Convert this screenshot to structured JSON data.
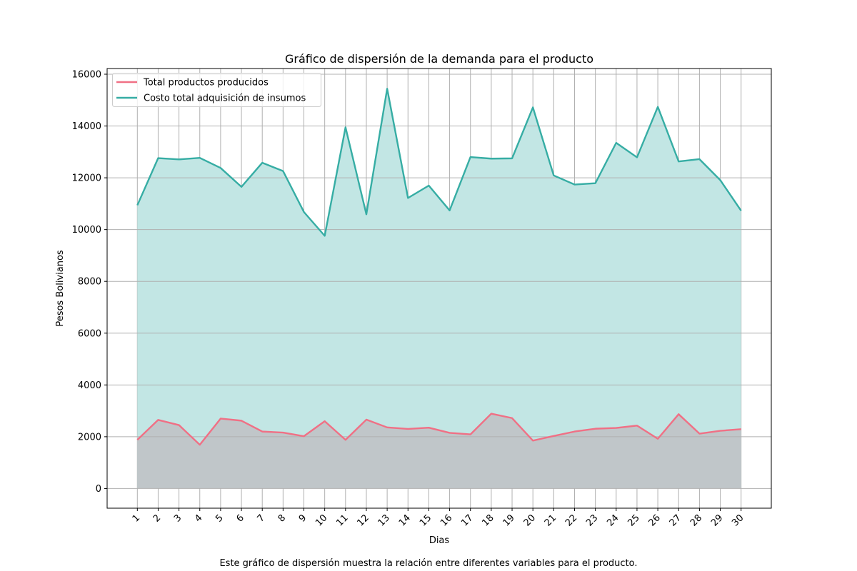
{
  "chart_data": {
    "type": "area",
    "title": "Gráfico de dispersión de la demanda para el producto",
    "xlabel": "Dias",
    "ylabel": "Pesos Bolivianos",
    "caption": "Este gráfico de dispersión muestra la relación entre diferentes variables para el producto.",
    "categories": [
      "1",
      "2",
      "3",
      "4",
      "5",
      "6",
      "7",
      "8",
      "9",
      "10",
      "11",
      "12",
      "13",
      "14",
      "15",
      "16",
      "17",
      "18",
      "19",
      "20",
      "21",
      "22",
      "23",
      "24",
      "25",
      "26",
      "27",
      "28",
      "29",
      "30"
    ],
    "series": [
      {
        "name": "Total productos producidos",
        "color": "#f07085",
        "fill": "#c0c6c9",
        "values": [
          1880,
          2650,
          2450,
          1690,
          2700,
          2620,
          2200,
          2160,
          2020,
          2600,
          1880,
          2660,
          2360,
          2300,
          2350,
          2150,
          2090,
          2890,
          2720,
          1850,
          2030,
          2200,
          2310,
          2340,
          2430,
          1920,
          2870,
          2120,
          2230,
          2290
        ]
      },
      {
        "name": "Costo total adquisición de insumos",
        "color": "#36ada4",
        "fill": "#c2e6e4",
        "values": [
          10940,
          12760,
          12710,
          12770,
          12380,
          11650,
          12580,
          12260,
          10680,
          9760,
          13950,
          10590,
          15440,
          11220,
          11700,
          10740,
          12800,
          12740,
          12750,
          14720,
          12090,
          11740,
          11790,
          13350,
          12790,
          14740,
          12630,
          12720,
          11910,
          10730
        ]
      }
    ],
    "ylim": [
      -760,
      16220
    ],
    "yticks": [
      0,
      2000,
      4000,
      6000,
      8000,
      10000,
      12000,
      14000,
      16000
    ],
    "grid": true,
    "legend_position": "top-left"
  }
}
